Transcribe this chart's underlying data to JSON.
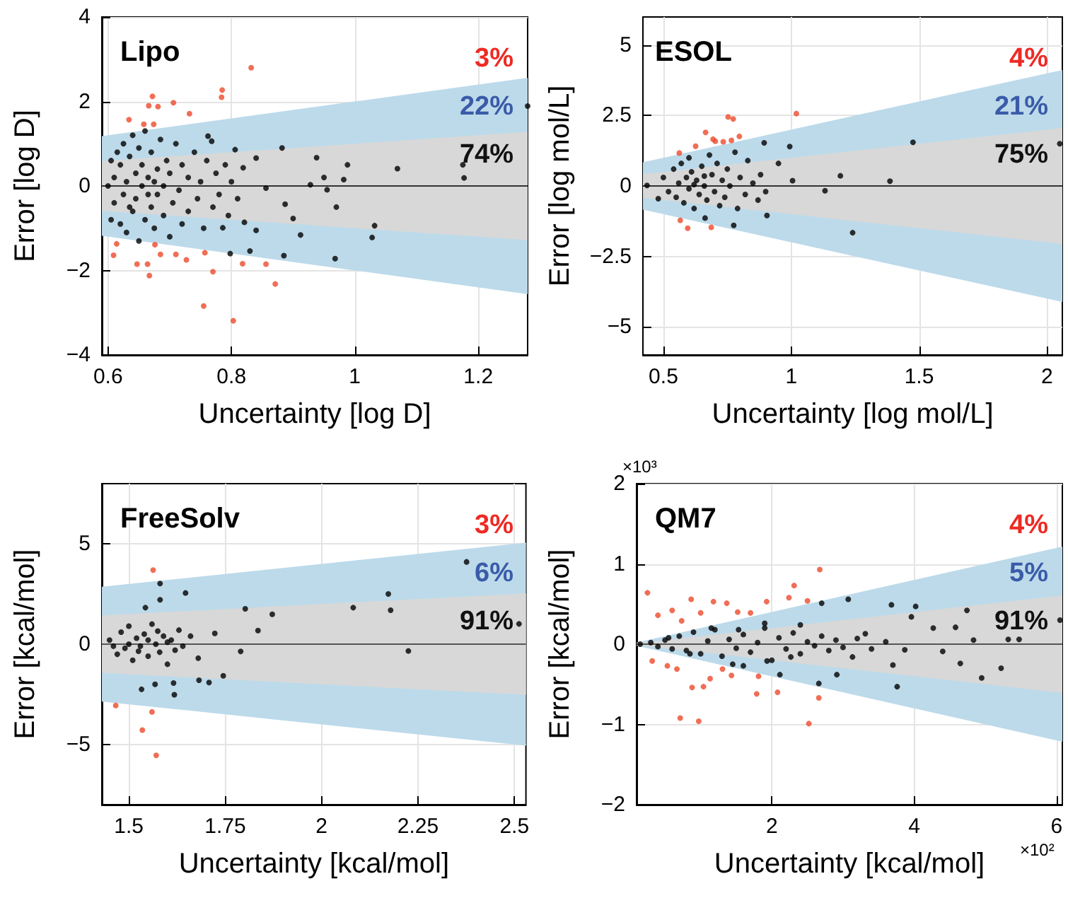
{
  "chart_data": [
    {
      "type": "scatter",
      "title": "Lipo",
      "xlabel": "Uncertainty [log D]",
      "ylabel": "Error [log D]",
      "xlim": [
        0.59,
        1.28
      ],
      "ylim": [
        -4,
        4
      ],
      "xticks": [
        0.6,
        0.8,
        1,
        1.2
      ],
      "yticks": [
        {
          "value": -4,
          "label": "−4"
        },
        {
          "value": -2,
          "label": "−2"
        },
        0,
        2,
        4
      ],
      "grid": true,
      "marker": "circle",
      "annotations": [
        "3%",
        "22%",
        "74%"
      ],
      "ref_lines": [
        {
          "axis": "y",
          "value": 0,
          "color": "#333333"
        }
      ],
      "series": [
        {
          "type": "line",
          "color": "#bcdaea",
          "x": [
            0.59,
            1.28
          ],
          "values": [
            null,
            null
          ],
          "lower": [
            -1.18,
            -2.56
          ],
          "upper": [
            1.18,
            2.56
          ]
        },
        {
          "type": "line",
          "color": "#d8d8d8",
          "x": [
            0.59,
            1.28
          ],
          "values": [
            null,
            null
          ],
          "lower": [
            -0.59,
            -1.28
          ],
          "upper": [
            0.59,
            1.28
          ]
        },
        {
          "color": "#ec4a2c",
          "x": [
            0.832,
            0.672,
            0.706,
            0.785,
            0.784,
            0.732,
            0.666,
            0.681,
            0.634,
            0.658,
            0.674,
            0.609,
            0.614,
            0.647,
            0.664,
            0.667,
            0.685,
            0.71,
            0.727,
            0.757,
            0.77,
            0.755,
            0.803,
            0.818,
            0.856,
            0.871,
            0.676
          ],
          "values": [
            2.8,
            2.12,
            1.97,
            2.27,
            2.1,
            1.71,
            1.9,
            1.88,
            1.57,
            1.46,
            1.46,
            -1.64,
            -1.37,
            -1.85,
            -1.85,
            -2.12,
            -1.62,
            -1.62,
            -1.75,
            -1.58,
            -2.03,
            -2.84,
            -3.19,
            -1.84,
            -1.85,
            -2.32,
            -1.39
          ]
        },
        {
          "color": "#000000",
          "x": [
            0.882,
            0.938,
            0.988,
            1.069,
            1.177,
            1.175,
            1.28,
            1.032,
            1.028,
            0.968,
            0.97,
            0.912,
            0.885,
            0.9,
            0.928,
            0.95,
            0.982,
            0.955,
            0.887,
            0.856,
            0.84,
            0.806,
            0.819,
            0.83,
            0.798,
            0.821,
            0.84,
            0.786,
            0.768,
            0.762,
            0.61,
            0.61,
            0.615,
            0.62,
            0.62,
            0.625,
            0.625,
            0.63,
            0.63,
            0.635,
            0.64,
            0.64,
            0.645,
            0.645,
            0.65,
            0.65,
            0.655,
            0.655,
            0.66,
            0.66,
            0.665,
            0.67,
            0.67,
            0.675,
            0.68,
            0.68,
            0.685,
            0.69,
            0.69,
            0.695,
            0.7,
            0.7,
            0.705,
            0.71,
            0.715,
            0.72,
            0.72,
            0.73,
            0.73,
            0.74,
            0.745,
            0.75,
            0.755,
            0.76,
            0.77,
            0.775,
            0.78,
            0.79,
            0.795,
            0.8,
            0.81,
            0.6,
            0.605,
            0.605,
            0.635,
            0.665,
            0.675
          ],
          "values": [
            0.9,
            0.67,
            0.5,
            0.41,
            0.19,
            0.5,
            1.89,
            -0.94,
            -1.22,
            -1.72,
            -0.5,
            -1.16,
            -1.65,
            -0.77,
            0.03,
            0.2,
            0.15,
            -0.09,
            -0.43,
            -0.05,
            0.66,
            0.86,
            0.43,
            -1.54,
            -1.6,
            -0.86,
            -1.05,
            -0.99,
            1.06,
            1.18,
            0.2,
            -0.4,
            0.8,
            -0.9,
            0.5,
            1.0,
            -0.2,
            0.1,
            -1.1,
            0.7,
            -0.6,
            1.2,
            0.3,
            -0.3,
            0.9,
            -1.3,
            0,
            0.5,
            -0.8,
            1.3,
            0.2,
            -0.5,
            0.8,
            -1,
            0.4,
            -0.2,
            1.1,
            -0.7,
            0,
            0.6,
            -1.2,
            0.3,
            -0.4,
            1,
            -0.1,
            0.5,
            -0.9,
            0.2,
            -0.6,
            0.8,
            -0.3,
            0.1,
            -1,
            0.6,
            -0.5,
            0.3,
            -0.2,
            0.5,
            -0.7,
            0.1,
            -0.3,
            0,
            -0.8,
            0.6,
            -0.5,
            -0.2,
            0.1
          ]
        }
      ]
    },
    {
      "type": "scatter",
      "title": "ESOL",
      "xlabel": "Uncertainty [log mol/L]",
      "ylabel": "Error [log mol/L]",
      "xlim": [
        0.42,
        2.06
      ],
      "ylim": [
        -6,
        6
      ],
      "xticks": [
        0.5,
        1,
        1.5,
        2
      ],
      "yticks": [
        {
          "value": -5,
          "label": "−5"
        },
        {
          "value": -2.5,
          "label": "−2.5"
        },
        0,
        2.5,
        5
      ],
      "grid": true,
      "marker": "circle",
      "annotations": [
        "4%",
        "21%",
        "75%"
      ],
      "ref_lines": [
        {
          "axis": "y",
          "value": 0,
          "color": "#333333"
        }
      ],
      "series": [
        {
          "type": "line",
          "color": "#bcdaea",
          "x": [
            0.42,
            2.06
          ],
          "values": [
            null,
            null
          ],
          "lower": [
            -0.84,
            -4.12
          ],
          "upper": [
            0.84,
            4.12
          ]
        },
        {
          "type": "line",
          "color": "#d8d8d8",
          "x": [
            0.42,
            2.06
          ],
          "values": [
            null,
            null
          ],
          "lower": [
            -0.42,
            -2.06
          ],
          "upper": [
            0.42,
            2.06
          ]
        },
        {
          "color": "#ec4a2c",
          "x": [
            1.02,
            0.753,
            0.773,
            0.665,
            0.694,
            0.703,
            0.734,
            0.766,
            0.797,
            0.626,
            0.562,
            0.566,
            0.595,
            0.687
          ],
          "values": [
            2.57,
            2.45,
            2.38,
            1.9,
            1.66,
            1.59,
            1.57,
            1.62,
            1.76,
            1.41,
            1.17,
            -1.22,
            -1.5,
            -1.47
          ]
        },
        {
          "color": "#000000",
          "x": [
            1.476,
            1.386,
            1.192,
            1.132,
            1.24,
            2.05,
            1.005,
            0.994,
            0.894,
            0.905,
            0.775,
            0.663,
            0.48,
            0.436,
            0.5,
            0.52,
            0.54,
            0.55,
            0.56,
            0.57,
            0.58,
            0.59,
            0.6,
            0.6,
            0.61,
            0.62,
            0.63,
            0.64,
            0.65,
            0.66,
            0.67,
            0.68,
            0.69,
            0.7,
            0.71,
            0.72,
            0.73,
            0.74,
            0.75,
            0.76,
            0.78,
            0.79,
            0.8,
            0.82,
            0.83,
            0.85,
            0.87,
            0.88,
            0.9,
            0.95,
            0.62,
            0.66
          ],
          "values": [
            1.55,
            0.17,
            0.36,
            -0.17,
            -1.66,
            1.5,
            0.19,
            1.4,
            1.53,
            -1.05,
            -1.4,
            -1.14,
            -0.45,
            0.02,
            0.3,
            -0.2,
            0.6,
            -0.4,
            0.1,
            0.8,
            -0.6,
            0.3,
            -0.1,
            1,
            0.5,
            -0.8,
            0.2,
            -0.3,
            0.7,
            0,
            -0.5,
            1.1,
            0.4,
            -0.2,
            0.8,
            -0.7,
            0.2,
            -0.4,
            0.6,
            0,
            1.2,
            -0.8,
            0.3,
            -0.3,
            0.9,
            0.1,
            -0.5,
            0.4,
            -0.2,
            0.8,
            0.05,
            0.35
          ]
        }
      ]
    },
    {
      "type": "scatter",
      "title": "FreeSolv",
      "xlabel": "Uncertainty [kcal/mol]",
      "ylabel": "Error [kcal/mol]",
      "xlim": [
        1.43,
        2.53
      ],
      "ylim": [
        -8,
        8
      ],
      "xticks": [
        1.5,
        1.75,
        2,
        2.25,
        2.5
      ],
      "yticks": [
        {
          "value": -5,
          "label": "−5"
        },
        0,
        5
      ],
      "grid": true,
      "marker": "circle",
      "annotations": [
        "3%",
        "6%",
        "91%"
      ],
      "ref_lines": [
        {
          "axis": "y",
          "value": 0,
          "color": "#555555"
        }
      ],
      "series": [
        {
          "type": "line",
          "color": "#bcdaea",
          "x": [
            1.43,
            2.53
          ],
          "values": [
            null,
            null
          ],
          "lower": [
            -2.86,
            -5.06
          ],
          "upper": [
            2.86,
            5.06
          ]
        },
        {
          "type": "line",
          "color": "#d8d8d8",
          "x": [
            1.43,
            2.53
          ],
          "values": [
            null,
            null
          ],
          "lower": [
            -1.43,
            -2.53
          ],
          "upper": [
            1.43,
            2.53
          ]
        },
        {
          "color": "#ec4a2c",
          "x": [
            1.563,
            1.466,
            1.56,
            1.535,
            1.571
          ],
          "values": [
            3.69,
            -3.06,
            -3.38,
            -4.28,
            -5.54
          ]
        },
        {
          "color": "#000000",
          "x": [
            2.376,
            2.173,
            2.179,
            2.082,
            2.225,
            2.512,
            1.872,
            1.802,
            1.835,
            1.79,
            1.745,
            1.708,
            1.682,
            1.723,
            1.647,
            1.581,
            1.581,
            1.543,
            1.618,
            1.533,
            1.568,
            1.616,
            1.45,
            1.47,
            1.48,
            1.49,
            1.5,
            1.51,
            1.52,
            1.53,
            1.54,
            1.55,
            1.56,
            1.57,
            1.58,
            1.59,
            1.6,
            1.61,
            1.62,
            1.63,
            1.64,
            1.66,
            1.68,
            1.46,
            1.5,
            1.55,
            1.6,
            1.525,
            1.575
          ],
          "values": [
            4.1,
            2.5,
            1.69,
            1.82,
            -0.34,
            1.01,
            1.49,
            1.76,
            0.68,
            -0.36,
            -1.58,
            -1.91,
            -1.8,
            0.54,
            2.55,
            3.02,
            2.21,
            1.82,
            -2.52,
            -2.25,
            -2,
            -1.94,
            0.2,
            -0.5,
            0.6,
            -0.2,
            0.9,
            -0.8,
            0.3,
            -0.1,
            0.5,
            -0.6,
            1,
            0,
            -0.4,
            0.4,
            -1,
            0.2,
            -0.3,
            0.7,
            -0.1,
            0.4,
            -0.7,
            -0.1,
            0,
            0.2,
            0.1,
            -0.35,
            0.65
          ]
        }
      ]
    },
    {
      "type": "scatter",
      "title": "QM7",
      "xlabel": "Uncertainty [kcal/mol]",
      "ylabel": "Error [kcal/mol]",
      "xlim": [
        0.1,
        6.08
      ],
      "ylim": [
        -2,
        2
      ],
      "xticks": [
        2,
        4,
        6
      ],
      "yticks": [
        {
          "value": -2,
          "label": "−2"
        },
        {
          "value": -1,
          "label": "−1"
        },
        0,
        1,
        2
      ],
      "grid": true,
      "marker": "circle",
      "annotations": [
        "4%",
        "5%",
        "91%",
        "×10³",
        "×10²"
      ],
      "ref_lines": [
        {
          "axis": "y",
          "value": 0,
          "color": "#555555"
        }
      ],
      "series": [
        {
          "type": "line",
          "color": "#bcdaea",
          "x": [
            0.1,
            6.08
          ],
          "values": [
            null,
            null
          ],
          "lower": [
            -0.02,
            -1.216
          ],
          "upper": [
            0.02,
            1.216
          ]
        },
        {
          "type": "line",
          "color": "#d8d8d8",
          "x": [
            0.1,
            6.08
          ],
          "values": [
            null,
            null
          ],
          "lower": [
            -0.01,
            -0.608
          ],
          "upper": [
            0.01,
            0.608
          ]
        },
        {
          "color": "#ec4a2c",
          "x": [
            0.253,
            0.713,
            0.973,
            2.673,
            2.313,
            2.52,
            2.66,
            2.08,
            1.787,
            0.867,
            1.18,
            1.367,
            1.927,
            2.24,
            2.5,
            0.4,
            0.6,
            0.32,
            0.533,
            0.88,
            1.04,
            1.133,
            1.307,
            1.433,
            1.813,
            0.733,
            1.52,
            1.7,
            1,
            0.667
          ],
          "values": [
            0.64,
            -0.92,
            -0.96,
            0.93,
            0.73,
            -0.99,
            -0.67,
            -0.6,
            -0.62,
            0.56,
            0.53,
            0.51,
            0.53,
            0.58,
            0.54,
            0.36,
            0.42,
            -0.21,
            -0.27,
            -0.54,
            -0.53,
            -0.43,
            -0.31,
            -0.39,
            -0.4,
            0.29,
            0.4,
            0.39,
            0.39,
            -0.31
          ]
        },
        {
          "color": "#000000",
          "x": [
            3.76,
            4.947,
            5.22,
            4.74,
            4.58,
            4.02,
            3.68,
            3.073,
            2.7,
            2.913,
            2.66,
            3.7,
            4.647,
            5.32,
            5.473,
            6.047,
            4.267,
            3.96,
            3.313,
            3.867,
            3.133,
            2.113,
            1.933,
            1.6,
            1.533,
            1.9,
            2.4,
            2.267,
            4.4,
            4.833,
            0.15,
            0.3,
            0.4,
            0.5,
            0.6,
            0.7,
            0.8,
            0.9,
            1,
            1.1,
            1.2,
            1.3,
            1.4,
            1.5,
            1.6,
            1.7,
            1.8,
            1.9,
            2,
            2.1,
            2.2,
            2.3,
            2.4,
            2.5,
            2.6,
            2.7,
            2.8,
            2.9,
            3,
            3.2,
            3.4,
            3.6,
            0.55,
            0.85,
            1.15,
            1.45
          ],
          "values": [
            -0.53,
            -0.42,
            -0.3,
            0.42,
            0.21,
            0.47,
            0.49,
            0.56,
            0.51,
            -0.38,
            -0.49,
            -0.26,
            -0.24,
            0.06,
            0.06,
            0.3,
            0.2,
            0.34,
            0.13,
            -0.07,
            -0.16,
            -0.38,
            -0.21,
            -0.27,
            0.18,
            0.26,
            0.24,
            -0.16,
            -0.09,
            0.05,
            0,
            0.02,
            -0.03,
            0.05,
            -0.06,
            0.1,
            -0.08,
            0.15,
            -0.12,
            0.04,
            0.18,
            -0.15,
            0.06,
            -0.05,
            0.12,
            -0.1,
            0.02,
            0.2,
            -0.2,
            0.08,
            -0.06,
            0.14,
            -0.12,
            0.03,
            -0.02,
            0.1,
            -0.08,
            0.05,
            -0.04,
            0.07,
            -0.06,
            0.03,
            0.08,
            -0.12,
            0.2,
            -0.25
          ]
        }
      ]
    }
  ]
}
